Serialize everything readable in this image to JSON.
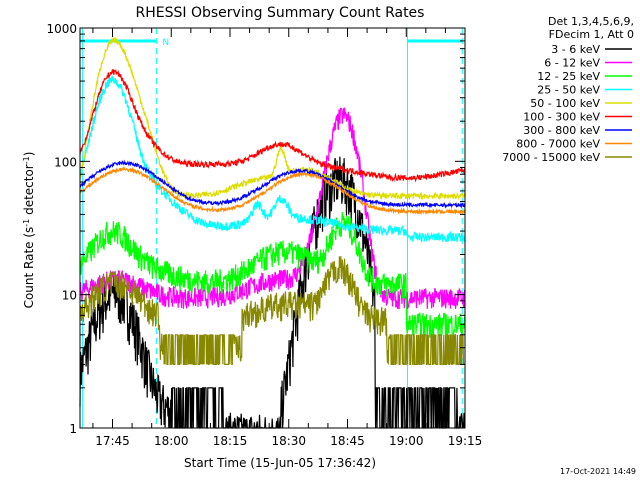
{
  "chart_data": {
    "type": "line",
    "title": "RHESSI Observing Summary Count Rates",
    "xlabel": "Start Time (15-Jun-05 17:36:42)",
    "ylabel_parts": [
      "Count Rate (s",
      "-1",
      " detector",
      "-1",
      ")"
    ],
    "y_scale": "log",
    "ylim": [
      1,
      1000
    ],
    "xlim_minutes": [
      17.5,
      16.3
    ],
    "x_ticks": [
      {
        "t": 45,
        "label": "17:45"
      },
      {
        "t": 60,
        "label": "18:00"
      },
      {
        "t": 75,
        "label": "18:15"
      },
      {
        "t": 90,
        "label": "18:30"
      },
      {
        "t": 105,
        "label": "18:45"
      },
      {
        "t": 120,
        "label": "19:00"
      },
      {
        "t": 135,
        "label": "19:15"
      }
    ],
    "y_ticks": [
      {
        "v": 1,
        "label": "1"
      },
      {
        "v": 10,
        "label": "10"
      },
      {
        "v": 100,
        "label": "100"
      },
      {
        "v": 1000,
        "label": "1000"
      }
    ],
    "legend_header": [
      "Det 1,3,4,5,6,9,",
      "FDecim 1, Att 0"
    ],
    "series": [
      {
        "name": "3 - 6 keV",
        "color": "#000000"
      },
      {
        "name": "6 - 12 keV",
        "color": "#ff00ff"
      },
      {
        "name": "12 - 25 keV",
        "color": "#00ff00"
      },
      {
        "name": "25 - 50 keV",
        "color": "#00ffff"
      },
      {
        "name": "50 - 100 keV",
        "color": "#dddd00"
      },
      {
        "name": "100 - 300 keV",
        "color": "#ff0000"
      },
      {
        "name": "300 - 800 keV",
        "color": "#0000ff"
      },
      {
        "name": "800 - 7000 keV",
        "color": "#ff8800"
      },
      {
        "name": "7000 - 15000 keV",
        "color": "#888800"
      }
    ],
    "annotations": [
      {
        "text": "N",
        "color": "#00ffff"
      }
    ],
    "night_intervals_time": [
      [
        "17:36:42",
        "17:56"
      ],
      [
        "19:09",
        "19:13"
      ]
    ],
    "saa_marker_lines_time": [
      "17:38",
      "17:57",
      "19:09",
      "19:13"
    ],
    "footer_date": "17-Oct-2021 14:49"
  }
}
